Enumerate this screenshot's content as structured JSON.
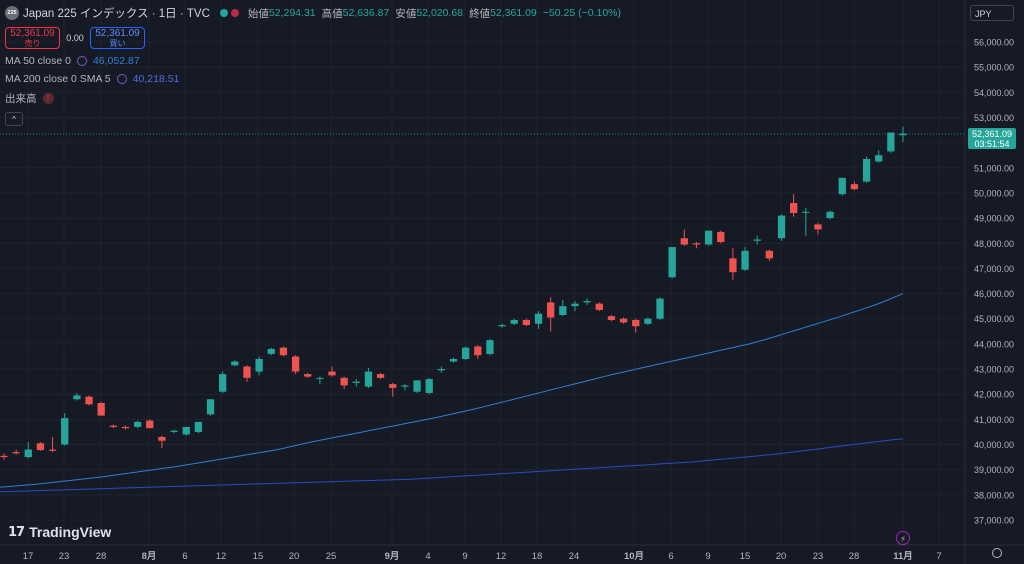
{
  "symbol": {
    "logo": "225",
    "title": "Japan 225 インデックス · 1日 · TVC",
    "open_label": "始値",
    "open": "52,294.31",
    "high_label": "高値",
    "high": "52,636.87",
    "low_label": "安値",
    "low": "52,020.68",
    "close_label": "終値",
    "close": "52,361.09",
    "change": "−50.25 (−0.10%)"
  },
  "trade": {
    "sell_price": "52,361.09",
    "sell_label": "売り",
    "spread": "0.00",
    "buy_price": "52,361.09",
    "buy_label": "買い"
  },
  "indicators": {
    "ma50_label": "MA 50 close 0",
    "ma50_value": "46,052.87",
    "ma200_label": "MA 200 close 0 SMA 5",
    "ma200_value": "40,218.51",
    "volume_label": "出来高",
    "volume_error": "!"
  },
  "collapse_label": "^",
  "currency": "JPY",
  "last_price": {
    "value": "52,361.09",
    "countdown": "03:51:54"
  },
  "watermark": "TradingView",
  "bolt_icon": "⚡",
  "colors": {
    "up": "#26a69a",
    "down": "#ef5350",
    "ma50": "#2f7fd4",
    "ma200": "#2a4bc4",
    "background": "#161a25"
  },
  "chart_data": {
    "type": "candlestick",
    "y_ticks": [
      "56,000.00",
      "55,000.00",
      "54,000.00",
      "53,000.00",
      "52,000.00",
      "51,000.00",
      "50,000.00",
      "49,000.00",
      "48,000.00",
      "47,000.00",
      "46,000.00",
      "45,000.00",
      "44,000.00",
      "43,000.00",
      "42,000.00",
      "41,000.00",
      "40,000.00",
      "39,000.00",
      "38,000.00",
      "37,000.00"
    ],
    "x_ticks": [
      "17",
      "23",
      "28",
      "8月",
      "6",
      "12",
      "15",
      "20",
      "25",
      "9月",
      "4",
      "9",
      "12",
      "18",
      "24",
      "10月",
      "6",
      "9",
      "15",
      "20",
      "23",
      "28",
      "11月",
      "7"
    ],
    "ylim": [
      36500,
      56700
    ],
    "candles": [
      {
        "o": 39550,
        "h": 39650,
        "l": 39400,
        "c": 39500
      },
      {
        "o": 39700,
        "h": 39800,
        "l": 39600,
        "c": 39650
      },
      {
        "o": 39500,
        "h": 40100,
        "l": 39450,
        "c": 39800
      },
      {
        "o": 40050,
        "h": 40100,
        "l": 39750,
        "c": 39780
      },
      {
        "o": 39800,
        "h": 40300,
        "l": 39700,
        "c": 39750
      },
      {
        "o": 40000,
        "h": 41250,
        "l": 39950,
        "c": 41050
      },
      {
        "o": 41800,
        "h": 42050,
        "l": 41750,
        "c": 41950
      },
      {
        "o": 41900,
        "h": 41950,
        "l": 41550,
        "c": 41600
      },
      {
        "o": 41650,
        "h": 41700,
        "l": 41150,
        "c": 41150
      },
      {
        "o": 40750,
        "h": 40800,
        "l": 40650,
        "c": 40700
      },
      {
        "o": 40700,
        "h": 40750,
        "l": 40600,
        "c": 40650
      },
      {
        "o": 40700,
        "h": 40950,
        "l": 40650,
        "c": 40900
      },
      {
        "o": 40950,
        "h": 41000,
        "l": 40650,
        "c": 40650
      },
      {
        "o": 40300,
        "h": 40350,
        "l": 39850,
        "c": 40150
      },
      {
        "o": 40500,
        "h": 40600,
        "l": 40450,
        "c": 40550
      },
      {
        "o": 40400,
        "h": 40700,
        "l": 40350,
        "c": 40700
      },
      {
        "o": 40500,
        "h": 40900,
        "l": 40450,
        "c": 40900
      },
      {
        "o": 41200,
        "h": 41800,
        "l": 41150,
        "c": 41800
      },
      {
        "o": 42100,
        "h": 42900,
        "l": 42050,
        "c": 42800
      },
      {
        "o": 43150,
        "h": 43350,
        "l": 43100,
        "c": 43300
      },
      {
        "o": 43100,
        "h": 43150,
        "l": 42500,
        "c": 42650
      },
      {
        "o": 42900,
        "h": 43500,
        "l": 42750,
        "c": 43400
      },
      {
        "o": 43600,
        "h": 43850,
        "l": 43550,
        "c": 43800
      },
      {
        "o": 43850,
        "h": 43900,
        "l": 43500,
        "c": 43550
      },
      {
        "o": 43500,
        "h": 43550,
        "l": 42800,
        "c": 42900
      },
      {
        "o": 42800,
        "h": 42850,
        "l": 42650,
        "c": 42700
      },
      {
        "o": 42650,
        "h": 42700,
        "l": 42400,
        "c": 42650
      },
      {
        "o": 42900,
        "h": 43100,
        "l": 42700,
        "c": 42750
      },
      {
        "o": 42650,
        "h": 42700,
        "l": 42200,
        "c": 42350
      },
      {
        "o": 42450,
        "h": 42600,
        "l": 42300,
        "c": 42500
      },
      {
        "o": 42300,
        "h": 43050,
        "l": 42250,
        "c": 42900
      },
      {
        "o": 42800,
        "h": 42850,
        "l": 42600,
        "c": 42650
      },
      {
        "o": 42400,
        "h": 42450,
        "l": 41900,
        "c": 42250
      },
      {
        "o": 42300,
        "h": 42400,
        "l": 42150,
        "c": 42350
      },
      {
        "o": 42100,
        "h": 42550,
        "l": 42050,
        "c": 42550
      },
      {
        "o": 42050,
        "h": 42650,
        "l": 42000,
        "c": 42600
      },
      {
        "o": 42950,
        "h": 43100,
        "l": 42850,
        "c": 43000
      },
      {
        "o": 43300,
        "h": 43450,
        "l": 43250,
        "c": 43400
      },
      {
        "o": 43400,
        "h": 43900,
        "l": 43350,
        "c": 43850
      },
      {
        "o": 43900,
        "h": 43950,
        "l": 43400,
        "c": 43550
      },
      {
        "o": 43600,
        "h": 44200,
        "l": 43550,
        "c": 44150
      },
      {
        "o": 44700,
        "h": 44800,
        "l": 44650,
        "c": 44750
      },
      {
        "o": 44800,
        "h": 45000,
        "l": 44750,
        "c": 44950
      },
      {
        "o": 44950,
        "h": 45000,
        "l": 44700,
        "c": 44750
      },
      {
        "o": 44800,
        "h": 45300,
        "l": 44600,
        "c": 45200
      },
      {
        "o": 45650,
        "h": 45850,
        "l": 44500,
        "c": 45050
      },
      {
        "o": 45150,
        "h": 45750,
        "l": 45100,
        "c": 45500
      },
      {
        "o": 45500,
        "h": 45700,
        "l": 45300,
        "c": 45600
      },
      {
        "o": 45650,
        "h": 45800,
        "l": 45550,
        "c": 45700
      },
      {
        "o": 45600,
        "h": 45650,
        "l": 45300,
        "c": 45350
      },
      {
        "o": 45100,
        "h": 45150,
        "l": 44900,
        "c": 44950
      },
      {
        "o": 45000,
        "h": 45050,
        "l": 44800,
        "c": 44850
      },
      {
        "o": 44950,
        "h": 45000,
        "l": 44450,
        "c": 44700
      },
      {
        "o": 44800,
        "h": 45050,
        "l": 44750,
        "c": 45000
      },
      {
        "o": 45000,
        "h": 45850,
        "l": 44950,
        "c": 45800
      },
      {
        "o": 46650,
        "h": 47850,
        "l": 46600,
        "c": 47850
      },
      {
        "o": 48200,
        "h": 48550,
        "l": 47900,
        "c": 47950
      },
      {
        "o": 48000,
        "h": 48050,
        "l": 47800,
        "c": 47950
      },
      {
        "o": 47950,
        "h": 48500,
        "l": 47900,
        "c": 48500
      },
      {
        "o": 48450,
        "h": 48500,
        "l": 48000,
        "c": 48050
      },
      {
        "o": 47400,
        "h": 47800,
        "l": 46550,
        "c": 46850
      },
      {
        "o": 46950,
        "h": 47850,
        "l": 46900,
        "c": 47700
      },
      {
        "o": 48100,
        "h": 48300,
        "l": 47950,
        "c": 48150
      },
      {
        "o": 47700,
        "h": 47750,
        "l": 47300,
        "c": 47400
      },
      {
        "o": 48200,
        "h": 49150,
        "l": 48100,
        "c": 49100
      },
      {
        "o": 49600,
        "h": 49950,
        "l": 49050,
        "c": 49200
      },
      {
        "o": 49250,
        "h": 49400,
        "l": 48300,
        "c": 49250
      },
      {
        "o": 48750,
        "h": 48800,
        "l": 48350,
        "c": 48550
      },
      {
        "o": 49000,
        "h": 49300,
        "l": 48950,
        "c": 49250
      },
      {
        "o": 49950,
        "h": 50600,
        "l": 49900,
        "c": 50600
      },
      {
        "o": 50350,
        "h": 50450,
        "l": 50100,
        "c": 50150
      },
      {
        "o": 50450,
        "h": 51450,
        "l": 50400,
        "c": 51350
      },
      {
        "o": 51250,
        "h": 51700,
        "l": 51200,
        "c": 51500
      },
      {
        "o": 51650,
        "h": 52400,
        "l": 51600,
        "c": 52400
      },
      {
        "o": 52294.31,
        "h": 52636.87,
        "l": 52020.68,
        "c": 52361.09
      }
    ],
    "ma50": [
      38300,
      38330,
      38360,
      38390,
      38420,
      38460,
      38500,
      38540,
      38580,
      38620,
      38660,
      38700,
      38750,
      38800,
      38850,
      38900,
      38950,
      39000,
      39050,
      39100,
      39150,
      39210,
      39270,
      39330,
      39390,
      39450,
      39510,
      39570,
      39630,
      39690,
      39750,
      39820,
      39900,
      39980,
      40060,
      40140,
      40210,
      40280,
      40350,
      40420,
      40490,
      40560,
      40630,
      40700,
      40770,
      40840,
      40910,
      40980,
      41050,
      41130,
      41210,
      41290,
      41370,
      41450,
      41540,
      41630,
      41720,
      41810,
      41900,
      41990,
      42080,
      42170,
      42260,
      42350,
      42440,
      42530,
      42620,
      42710,
      42800,
      42880,
      42960,
      43040,
      43120,
      43200,
      43280,
      43360,
      43440,
      43520,
      43600,
      43680,
      43760,
      43840,
      43920,
      44000,
      44100,
      44200,
      44310,
      44420,
      44530,
      44640,
      44750,
      44860,
      44970,
      45080,
      45200,
      45320,
      45440,
      45560,
      45700,
      45850,
      46000
    ],
    "ma200": [
      38120,
      38130,
      38140,
      38150,
      38160,
      38170,
      38180,
      38190,
      38200,
      38210,
      38220,
      38230,
      38240,
      38250,
      38260,
      38270,
      38280,
      38290,
      38300,
      38310,
      38320,
      38330,
      38340,
      38350,
      38360,
      38370,
      38380,
      38390,
      38400,
      38410,
      38420,
      38430,
      38440,
      38450,
      38460,
      38470,
      38480,
      38490,
      38500,
      38510,
      38520,
      38530,
      38540,
      38550,
      38560,
      38570,
      38580,
      38590,
      38600,
      38610,
      38620,
      38640,
      38660,
      38680,
      38700,
      38720,
      38740,
      38760,
      38780,
      38800,
      38820,
      38840,
      38860,
      38880,
      38900,
      38920,
      38940,
      38960,
      38980,
      39000,
      39020,
      39040,
      39060,
      39080,
      39100,
      39120,
      39140,
      39160,
      39180,
      39200,
      39220,
      39240,
      39260,
      39280,
      39300,
      39330,
      39360,
      39390,
      39420,
      39450,
      39480,
      39510,
      39540,
      39570,
      39600,
      39640,
      39680,
      39720,
      39760,
      39800,
      39840,
      39880,
      39920,
      39960,
      40000,
      40040,
      40080,
      40120,
      40160,
      40200,
      40218.51
    ]
  }
}
